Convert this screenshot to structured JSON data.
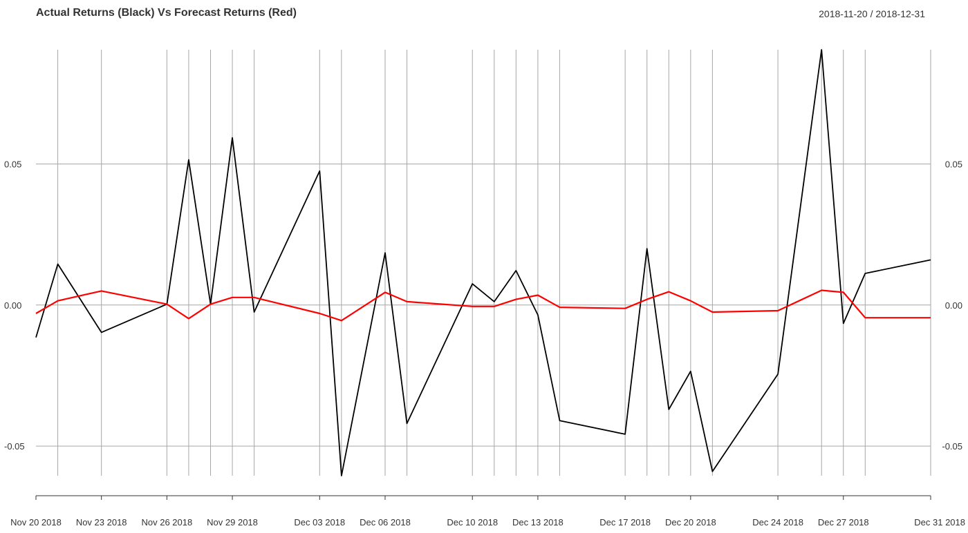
{
  "header": {
    "title": "Actual Returns (Black) Vs Forecast Returns (Red)",
    "date_range": "2018-11-20 / 2018-12-31"
  },
  "chart_data": {
    "type": "line",
    "title": "Actual Returns (Black) Vs Forecast Returns (Red)",
    "xlabel": "",
    "ylabel": "",
    "x": [
      "2018-11-20",
      "2018-11-21",
      "2018-11-23",
      "2018-11-26",
      "2018-11-27",
      "2018-11-28",
      "2018-11-29",
      "2018-11-30",
      "2018-12-03",
      "2018-12-04",
      "2018-12-06",
      "2018-12-07",
      "2018-12-10",
      "2018-12-11",
      "2018-12-12",
      "2018-12-13",
      "2018-12-14",
      "2018-12-17",
      "2018-12-18",
      "2018-12-19",
      "2018-12-20",
      "2018-12-21",
      "2018-12-24",
      "2018-12-26",
      "2018-12-27",
      "2018-12-28",
      "2018-12-31"
    ],
    "vertical_grid_dates": [
      "2018-11-21",
      "2018-11-23",
      "2018-11-26",
      "2018-11-27",
      "2018-11-28",
      "2018-11-29",
      "2018-11-30",
      "2018-12-03",
      "2018-12-04",
      "2018-12-06",
      "2018-12-07",
      "2018-12-10",
      "2018-12-11",
      "2018-12-12",
      "2018-12-13",
      "2018-12-14",
      "2018-12-17",
      "2018-12-18",
      "2018-12-19",
      "2018-12-20",
      "2018-12-21",
      "2018-12-24",
      "2018-12-26",
      "2018-12-27",
      "2018-12-28",
      "2018-12-31"
    ],
    "series": [
      {
        "color": "#000000",
        "values": [
          -0.0115,
          0.0145,
          -0.0097,
          0.0003,
          0.0515,
          0.0003,
          0.0593,
          -0.0025,
          0.0475,
          -0.0605,
          0.0185,
          -0.042,
          0.0075,
          0.0012,
          0.0122,
          -0.0035,
          -0.041,
          -0.0458,
          0.02,
          -0.037,
          -0.0235,
          -0.059,
          -0.0245,
          0.0905,
          -0.0065,
          0.0112,
          0.016
        ]
      },
      {
        "color": "#ff0000",
        "values": [
          -0.003,
          0.0015,
          0.005,
          0.0003,
          -0.0048,
          0.0003,
          0.0027,
          0.0027,
          -0.003,
          -0.0055,
          0.0045,
          0.0012,
          -0.0005,
          -0.0005,
          0.002,
          0.0035,
          -0.0008,
          -0.0012,
          0.002,
          0.0047,
          0.0015,
          -0.0025,
          -0.002,
          0.0052,
          0.0045,
          -0.0045,
          -0.0045
        ]
      }
    ],
    "yticks": [
      -0.05,
      0.0,
      0.05
    ],
    "ytick_labels": [
      "-0.05",
      "0.00",
      "0.05"
    ],
    "ylim": [
      -0.0605,
      0.0905
    ],
    "xtick_labels": [
      {
        "date": "2018-11-20",
        "label": "Nov 20 2018"
      },
      {
        "date": "2018-11-23",
        "label": "Nov 23 2018"
      },
      {
        "date": "2018-11-26",
        "label": "Nov 26 2018"
      },
      {
        "date": "2018-11-29",
        "label": "Nov 29 2018"
      },
      {
        "date": "2018-12-03",
        "label": "Dec 03 2018"
      },
      {
        "date": "2018-12-06",
        "label": "Dec 06 2018"
      },
      {
        "date": "2018-12-10",
        "label": "Dec 10 2018"
      },
      {
        "date": "2018-12-13",
        "label": "Dec 13 2018"
      },
      {
        "date": "2018-12-17",
        "label": "Dec 17 2018"
      },
      {
        "date": "2018-12-20",
        "label": "Dec 20 2018"
      },
      {
        "date": "2018-12-24",
        "label": "Dec 24 2018"
      },
      {
        "date": "2018-12-27",
        "label": "Dec 27 2018"
      },
      {
        "date": "2018-12-31",
        "label": "Dec 31 2018"
      }
    ],
    "grid": true
  }
}
